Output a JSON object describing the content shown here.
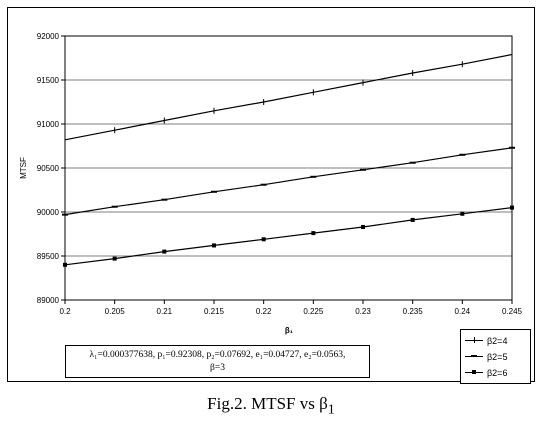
{
  "chart_data": {
    "type": "line",
    "xlabel": "β₁",
    "ylabel": "MTSF",
    "xlim": [
      0.2,
      0.245
    ],
    "ylim": [
      89000,
      92000
    ],
    "x_ticks": [
      "0.2",
      "0.205",
      "0.21",
      "0.215",
      "0.22",
      "0.225",
      "0.23",
      "0.235",
      "0.24",
      "0.245"
    ],
    "y_ticks": [
      "89000",
      "89500",
      "90000",
      "90500",
      "91000",
      "91500",
      "92000"
    ],
    "x": [
      0.2,
      0.205,
      0.21,
      0.215,
      0.22,
      0.225,
      0.23,
      0.235,
      0.24,
      0.245
    ],
    "series": [
      {
        "name": "β2=4",
        "marker": "plus",
        "values": [
          90820,
          90930,
          91040,
          91150,
          91250,
          91360,
          91470,
          91580,
          91680,
          91790
        ]
      },
      {
        "name": "β2=5",
        "marker": "dash",
        "values": [
          89970,
          90060,
          90140,
          90230,
          90310,
          90400,
          90480,
          90560,
          90650,
          90730
        ]
      },
      {
        "name": "β2=6",
        "marker": "square",
        "values": [
          89400,
          89470,
          89550,
          89620,
          89690,
          89760,
          89830,
          89910,
          89980,
          90050
        ]
      }
    ],
    "grid": "horizontal",
    "legend_position": "bottom-right"
  },
  "params_note": {
    "line1": "λ₁=0.000377638, p₁=0.92308, p₂=0.07692, e₁=0.04727, e₂=0.0563,",
    "line2": "β=3"
  },
  "caption": {
    "prefix": "Fig.2. MTSF vs β",
    "subscript": "1"
  }
}
